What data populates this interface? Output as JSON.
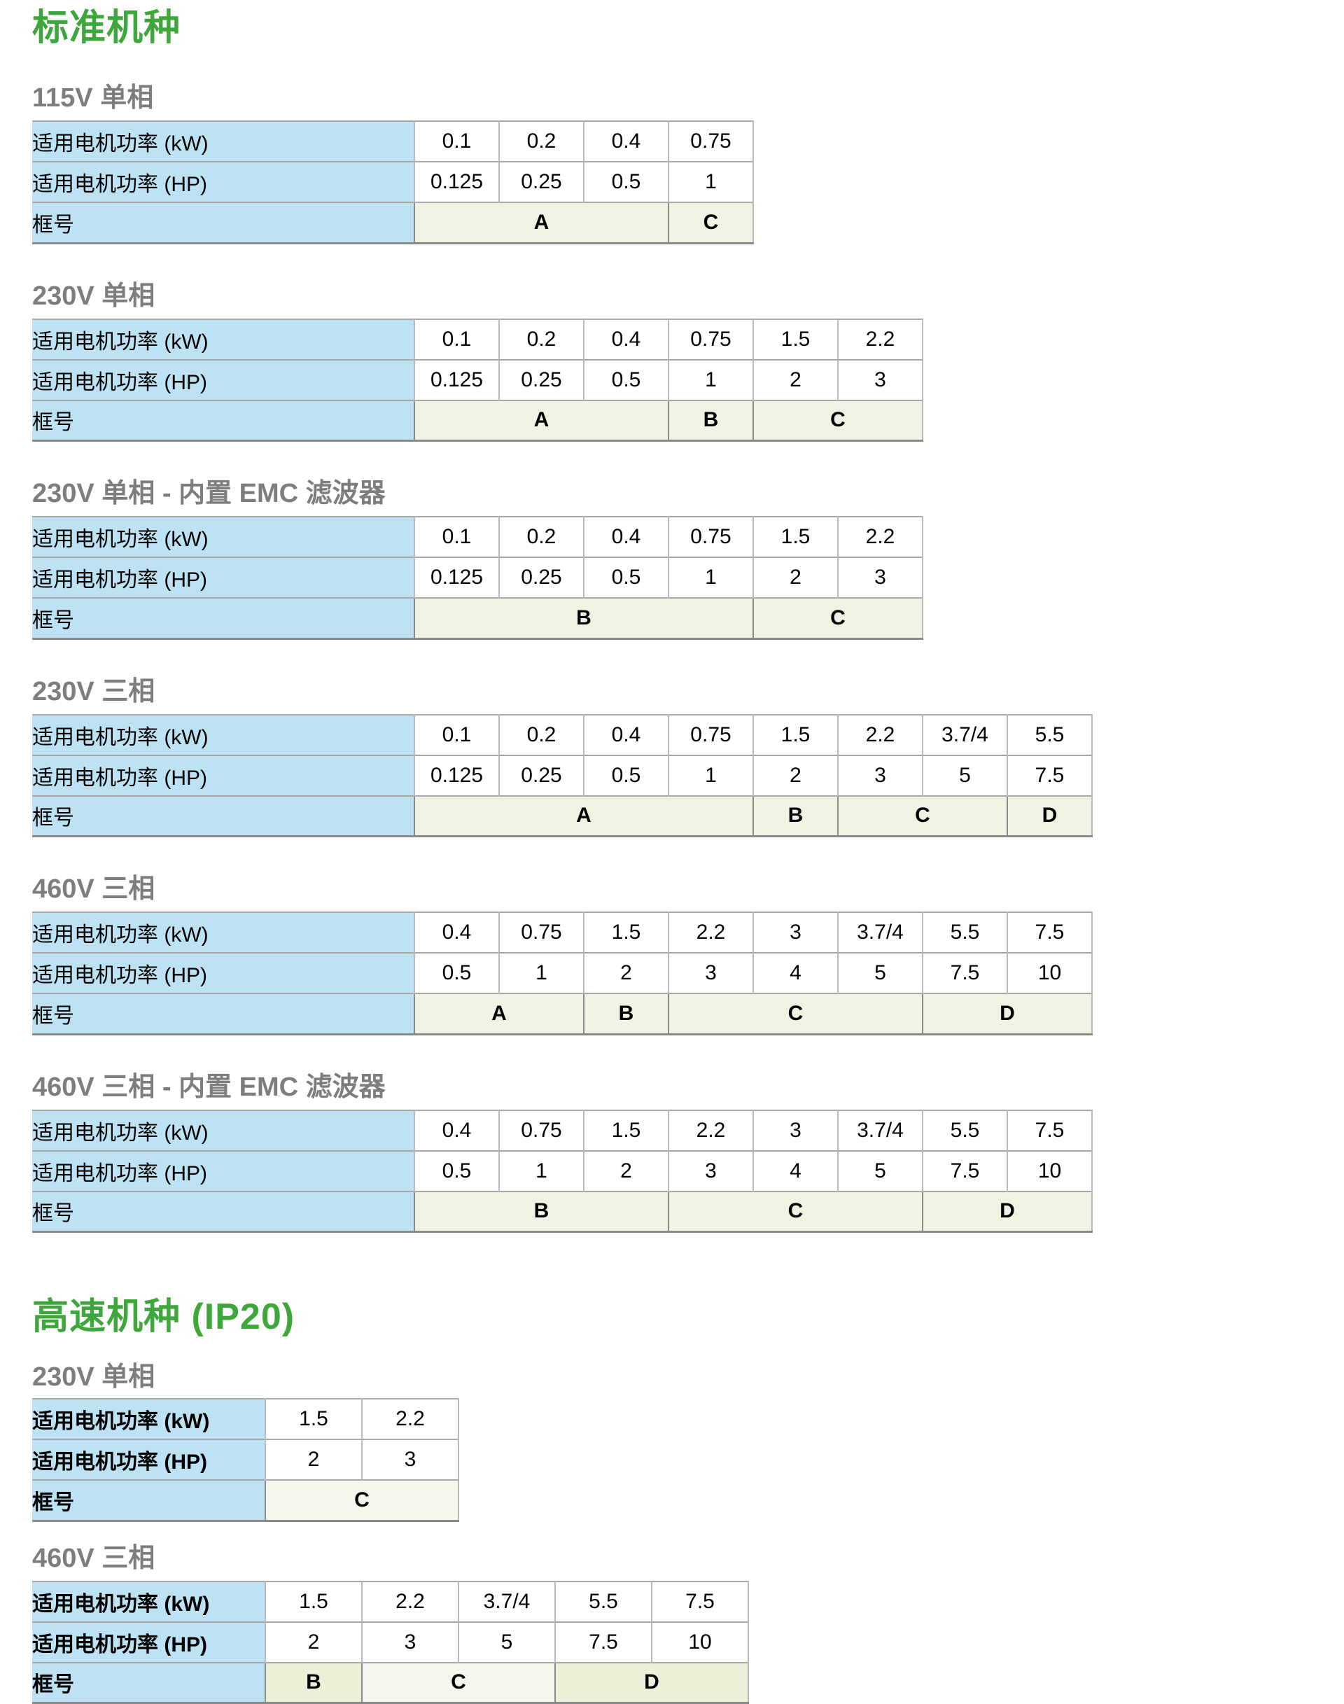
{
  "colors": {
    "heading_green": "#3ea73b",
    "subtitle_gray": "#7d7d7d",
    "label_blue": "#bde2f4",
    "frame_cell_green": "#eff3e1",
    "frame_cell_green_light": "#f5f7ec",
    "frame_cell_green_alt": "#ebf0d9",
    "grid_gray": "#a8a8a8"
  },
  "row_labels": {
    "kw": "适用电机功率 (kW)",
    "hp": "适用电机功率 (HP)",
    "frame": "框号"
  },
  "sections": [
    {
      "title": "标准机种",
      "tables": [
        {
          "subtitle": "115V 单相",
          "kw": [
            "0.1",
            "0.2",
            "0.4",
            "0.75"
          ],
          "hp": [
            "0.125",
            "0.25",
            "0.5",
            "1"
          ],
          "frames": [
            {
              "label": "A",
              "span": 3
            },
            {
              "label": "C",
              "span": 1
            }
          ]
        },
        {
          "subtitle": "230V 单相",
          "kw": [
            "0.1",
            "0.2",
            "0.4",
            "0.75",
            "1.5",
            "2.2"
          ],
          "hp": [
            "0.125",
            "0.25",
            "0.5",
            "1",
            "2",
            "3"
          ],
          "frames": [
            {
              "label": "A",
              "span": 3
            },
            {
              "label": "B",
              "span": 1
            },
            {
              "label": "C",
              "span": 2
            }
          ]
        },
        {
          "subtitle": "230V 单相 - 内置 EMC 滤波器",
          "kw": [
            "0.1",
            "0.2",
            "0.4",
            "0.75",
            "1.5",
            "2.2"
          ],
          "hp": [
            "0.125",
            "0.25",
            "0.5",
            "1",
            "2",
            "3"
          ],
          "frames": [
            {
              "label": "B",
              "span": 4
            },
            {
              "label": "C",
              "span": 2
            }
          ]
        },
        {
          "subtitle": "230V 三相",
          "kw": [
            "0.1",
            "0.2",
            "0.4",
            "0.75",
            "1.5",
            "2.2",
            "3.7/4",
            "5.5"
          ],
          "hp": [
            "0.125",
            "0.25",
            "0.5",
            "1",
            "2",
            "3",
            "5",
            "7.5"
          ],
          "frames": [
            {
              "label": "A",
              "span": 4
            },
            {
              "label": "B",
              "span": 1
            },
            {
              "label": "C",
              "span": 2
            },
            {
              "label": "D",
              "span": 1
            }
          ]
        },
        {
          "subtitle": "460V 三相",
          "kw": [
            "0.4",
            "0.75",
            "1.5",
            "2.2",
            "3",
            "3.7/4",
            "5.5",
            "7.5"
          ],
          "hp": [
            "0.5",
            "1",
            "2",
            "3",
            "4",
            "5",
            "7.5",
            "10"
          ],
          "frames": [
            {
              "label": "A",
              "span": 2
            },
            {
              "label": "B",
              "span": 1
            },
            {
              "label": "C",
              "span": 3
            },
            {
              "label": "D",
              "span": 2
            }
          ]
        },
        {
          "subtitle": "460V 三相 - 内置 EMC 滤波器",
          "kw": [
            "0.4",
            "0.75",
            "1.5",
            "2.2",
            "3",
            "3.7/4",
            "5.5",
            "7.5"
          ],
          "hp": [
            "0.5",
            "1",
            "2",
            "3",
            "4",
            "5",
            "7.5",
            "10"
          ],
          "frames": [
            {
              "label": "B",
              "span": 3
            },
            {
              "label": "C",
              "span": 3
            },
            {
              "label": "D",
              "span": 2
            }
          ]
        }
      ]
    },
    {
      "title": "高速机种 (IP20)",
      "tables": [
        {
          "subtitle": "230V 单相",
          "kw": [
            "1.5",
            "2.2"
          ],
          "hp": [
            "2",
            "3"
          ],
          "frames": [
            {
              "label": "C",
              "span": 2,
              "shade": "light"
            }
          ]
        },
        {
          "subtitle": "460V 三相",
          "kw": [
            "1.5",
            "2.2",
            "3.7/4",
            "5.5",
            "7.5"
          ],
          "hp": [
            "2",
            "3",
            "5",
            "7.5",
            "10"
          ],
          "frames": [
            {
              "label": "B",
              "span": 1,
              "shade": "alt"
            },
            {
              "label": "C",
              "span": 2,
              "shade": "light"
            },
            {
              "label": "D",
              "span": 2,
              "shade": "alt"
            }
          ]
        }
      ]
    }
  ]
}
